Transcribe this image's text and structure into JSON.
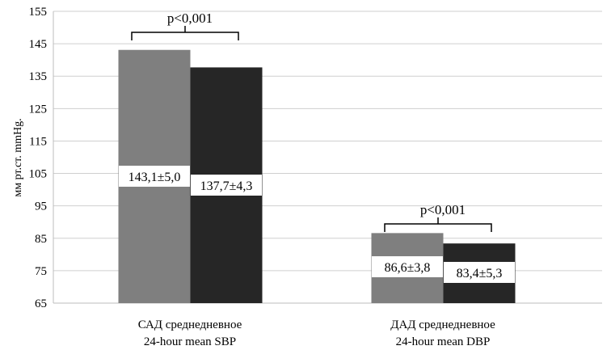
{
  "chart_data": {
    "type": "bar",
    "ylabel": "мм рт.ст.   mmHg.",
    "ylim": [
      65,
      155
    ],
    "yticks": [
      65,
      75,
      85,
      95,
      105,
      115,
      125,
      135,
      145,
      155
    ],
    "grid": true,
    "categories": [
      {
        "line1": "САД среднедневное",
        "line2": "24-hour mean SBP"
      },
      {
        "line1": "ДАД среднедневное",
        "line2": "24-hour mean DBP"
      }
    ],
    "series": [
      {
        "color": "#7f7f7f",
        "values": [
          143.1,
          86.6
        ],
        "labels": [
          "143,1±5,0",
          "86,6±3,8"
        ]
      },
      {
        "color": "#262626",
        "values": [
          137.7,
          83.4
        ],
        "labels": [
          "137,7±4,3",
          "83,4±5,3"
        ]
      }
    ],
    "annotations": [
      "p<0,001",
      "p<0,001"
    ]
  }
}
